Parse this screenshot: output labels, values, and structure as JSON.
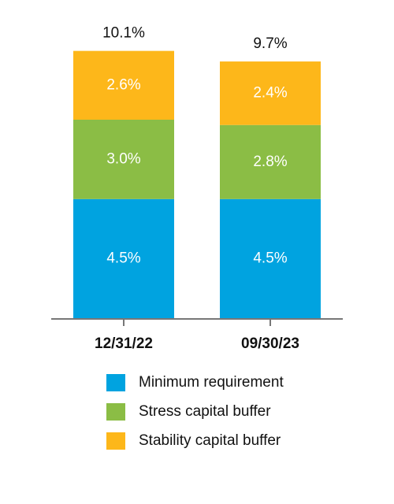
{
  "chart_data": {
    "type": "stacked_bar",
    "categories": [
      "12/31/22",
      "09/30/23"
    ],
    "series": [
      {
        "name": "Minimum requirement",
        "color": "#00a3e0",
        "values": [
          4.5,
          4.5
        ],
        "value_labels": [
          "4.5%",
          "4.5%"
        ]
      },
      {
        "name": "Stress capital buffer",
        "color": "#8bbd45",
        "values": [
          3.0,
          2.8
        ],
        "value_labels": [
          "3.0%",
          "2.8%"
        ]
      },
      {
        "name": "Stability capital buffer",
        "color": "#fdb71a",
        "values": [
          2.6,
          2.4
        ],
        "value_labels": [
          "2.6%",
          "2.4%"
        ]
      }
    ],
    "totals": [
      10.1,
      9.7
    ],
    "total_labels": [
      "10.1%",
      "9.7%"
    ],
    "legend": "bottom"
  }
}
